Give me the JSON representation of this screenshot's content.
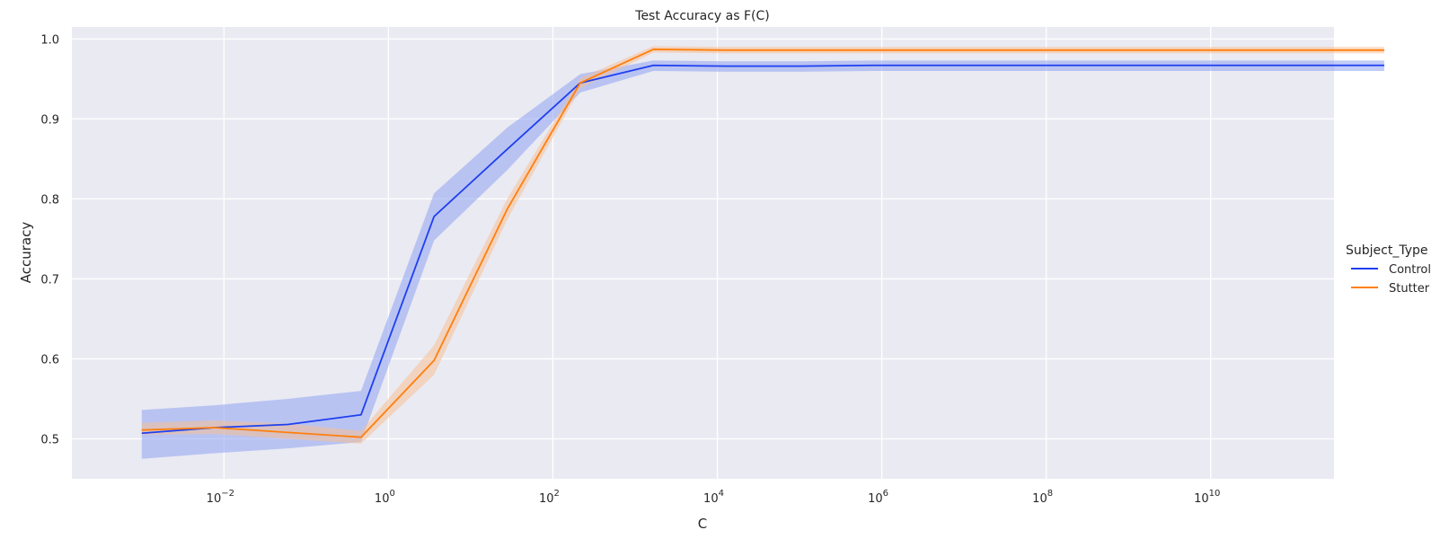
{
  "chart_data": {
    "type": "line",
    "title": "Test Accuracy as F(C)",
    "xlabel": "C",
    "ylabel": "Accuracy",
    "xscale": "log",
    "xlim_log10": [
      -3.85,
      11.5
    ],
    "ylim": [
      0.45,
      1.015
    ],
    "grid": true,
    "legend": {
      "title": "Subject_Type",
      "placement": "right"
    },
    "x_ticks": [
      {
        "base": "10",
        "exp": "−2",
        "log10": -2
      },
      {
        "base": "10",
        "exp": "0",
        "log10": 0
      },
      {
        "base": "10",
        "exp": "2",
        "log10": 2
      },
      {
        "base": "10",
        "exp": "4",
        "log10": 4
      },
      {
        "base": "10",
        "exp": "6",
        "log10": 6
      },
      {
        "base": "10",
        "exp": "8",
        "log10": 8
      },
      {
        "base": "10",
        "exp": "10",
        "log10": 10
      }
    ],
    "y_ticks": [
      "0.5",
      "0.6",
      "0.7",
      "0.8",
      "0.9",
      "1.0"
    ],
    "x": [
      0.001,
      0.0077,
      0.0599,
      0.464,
      3.59,
      27.8,
      215,
      1668,
      12915,
      100000,
      774264,
      5994843,
      46415888,
      359381366,
      2782559402,
      21544346900,
      166810053720,
      1291549665015
    ],
    "series": [
      {
        "name": "Control",
        "color": "#1f3ff0",
        "fill": "#8ea2f2",
        "values": [
          0.507,
          0.514,
          0.518,
          0.53,
          0.778,
          0.862,
          0.945,
          0.967,
          0.966,
          0.966,
          0.967,
          0.967,
          0.967,
          0.967,
          0.967,
          0.967,
          0.967,
          0.967
        ],
        "lower": [
          0.475,
          0.482,
          0.488,
          0.496,
          0.748,
          0.836,
          0.933,
          0.96,
          0.959,
          0.959,
          0.96,
          0.96,
          0.96,
          0.96,
          0.96,
          0.96,
          0.96,
          0.96
        ],
        "upper": [
          0.536,
          0.542,
          0.55,
          0.56,
          0.807,
          0.889,
          0.956,
          0.973,
          0.972,
          0.972,
          0.973,
          0.973,
          0.973,
          0.973,
          0.973,
          0.973,
          0.973,
          0.973
        ]
      },
      {
        "name": "Stutter",
        "color": "#ff7f0e",
        "fill": "#f5bf95",
        "values": [
          0.511,
          0.514,
          0.508,
          0.502,
          0.598,
          0.787,
          0.945,
          0.987,
          0.986,
          0.986,
          0.986,
          0.986,
          0.986,
          0.986,
          0.986,
          0.986,
          0.986,
          0.986
        ],
        "lower": [
          0.505,
          0.506,
          0.5,
          0.494,
          0.58,
          0.774,
          0.938,
          0.983,
          0.982,
          0.982,
          0.982,
          0.982,
          0.982,
          0.982,
          0.982,
          0.982,
          0.982,
          0.982
        ],
        "upper": [
          0.52,
          0.523,
          0.519,
          0.51,
          0.617,
          0.8,
          0.951,
          0.991,
          0.99,
          0.99,
          0.99,
          0.99,
          0.99,
          0.99,
          0.99,
          0.99,
          0.99,
          0.99
        ]
      }
    ]
  }
}
